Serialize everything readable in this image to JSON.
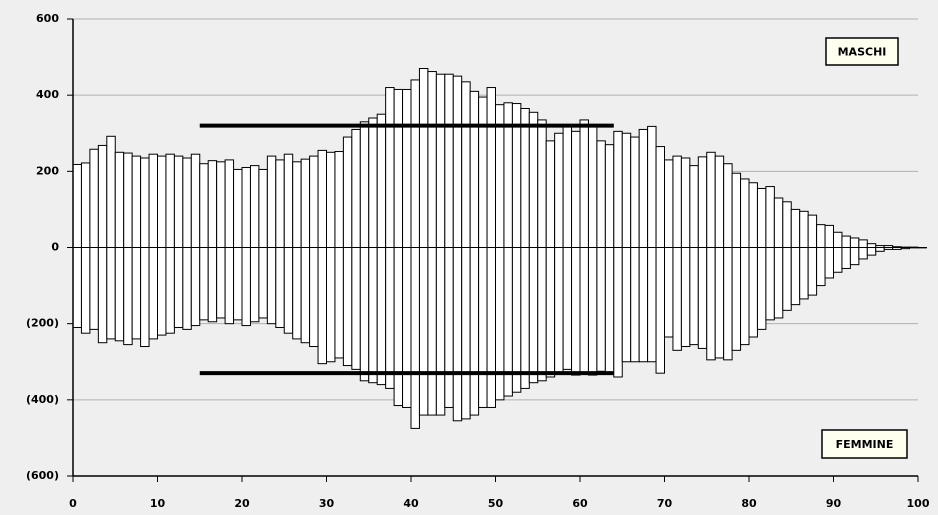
{
  "chart_data": {
    "type": "bar",
    "x": [
      0,
      1,
      2,
      3,
      4,
      5,
      6,
      7,
      8,
      9,
      10,
      11,
      12,
      13,
      14,
      15,
      16,
      17,
      18,
      19,
      20,
      21,
      22,
      23,
      24,
      25,
      26,
      27,
      28,
      29,
      30,
      31,
      32,
      33,
      34,
      35,
      36,
      37,
      38,
      39,
      40,
      41,
      42,
      43,
      44,
      45,
      46,
      47,
      48,
      49,
      50,
      51,
      52,
      53,
      54,
      55,
      56,
      57,
      58,
      59,
      60,
      61,
      62,
      63,
      64,
      65,
      66,
      67,
      68,
      69,
      70,
      71,
      72,
      73,
      74,
      75,
      76,
      77,
      78,
      79,
      80,
      81,
      82,
      83,
      84,
      85,
      86,
      87,
      88,
      89,
      90,
      91,
      92,
      93,
      94,
      95,
      96,
      97,
      98,
      99,
      100
    ],
    "series": [
      {
        "name": "MASCHI",
        "color": "#ffffff",
        "values": [
          218,
          222,
          258,
          268,
          292,
          250,
          248,
          240,
          235,
          245,
          240,
          245,
          240,
          235,
          245,
          220,
          228,
          225,
          230,
          205,
          210,
          215,
          205,
          240,
          230,
          245,
          225,
          232,
          240,
          255,
          250,
          252,
          290,
          310,
          330,
          340,
          350,
          420,
          415,
          415,
          440,
          470,
          462,
          455,
          455,
          450,
          435,
          410,
          395,
          420,
          375,
          380,
          378,
          365,
          355,
          335,
          280,
          300,
          320,
          305,
          335,
          320,
          280,
          270,
          305,
          300,
          290,
          310,
          318,
          265,
          230,
          240,
          235,
          215,
          238,
          250,
          240,
          220,
          195,
          180,
          170,
          155,
          160,
          130,
          120,
          100,
          95,
          85,
          60,
          58,
          40,
          30,
          25,
          20,
          10,
          5,
          5,
          2,
          1,
          1,
          0
        ]
      },
      {
        "name": "FEMMINE",
        "color": "#ffffff",
        "values": [
          -210,
          -225,
          -215,
          -250,
          -240,
          -245,
          -255,
          -240,
          -260,
          -240,
          -230,
          -225,
          -210,
          -215,
          -205,
          -190,
          -195,
          -185,
          -200,
          -190,
          -205,
          -195,
          -185,
          -200,
          -210,
          -225,
          -240,
          -250,
          -260,
          -305,
          -300,
          -290,
          -310,
          -320,
          -350,
          -355,
          -360,
          -370,
          -415,
          -420,
          -475,
          -440,
          -440,
          -440,
          -420,
          -455,
          -450,
          -440,
          -420,
          -420,
          -400,
          -390,
          -380,
          -370,
          -355,
          -350,
          -340,
          -330,
          -320,
          -335,
          -330,
          -335,
          -325,
          -330,
          -340,
          -300,
          -300,
          -300,
          -300,
          -330,
          -235,
          -270,
          -260,
          -255,
          -265,
          -295,
          -290,
          -295,
          -270,
          -255,
          -235,
          -215,
          -190,
          -185,
          -165,
          -150,
          -135,
          -125,
          -100,
          -80,
          -65,
          -55,
          -45,
          -30,
          -20,
          -10,
          -5,
          -5,
          -3,
          -1,
          -1
        ]
      }
    ],
    "reference_lines": [
      {
        "value": 320,
        "x": [
          15,
          64
        ]
      },
      {
        "value": -330,
        "x": [
          15,
          64
        ]
      }
    ],
    "xlim": [
      0,
      100
    ],
    "xticks": [
      0,
      10,
      20,
      30,
      40,
      50,
      60,
      70,
      80,
      90,
      100
    ],
    "ylim": [
      -600,
      600
    ],
    "yticks": [
      {
        "value": -600,
        "label": "(600)"
      },
      {
        "value": -400,
        "label": "(400)"
      },
      {
        "value": -200,
        "label": "(200)"
      },
      0,
      200,
      400,
      600
    ],
    "grid": true
  }
}
